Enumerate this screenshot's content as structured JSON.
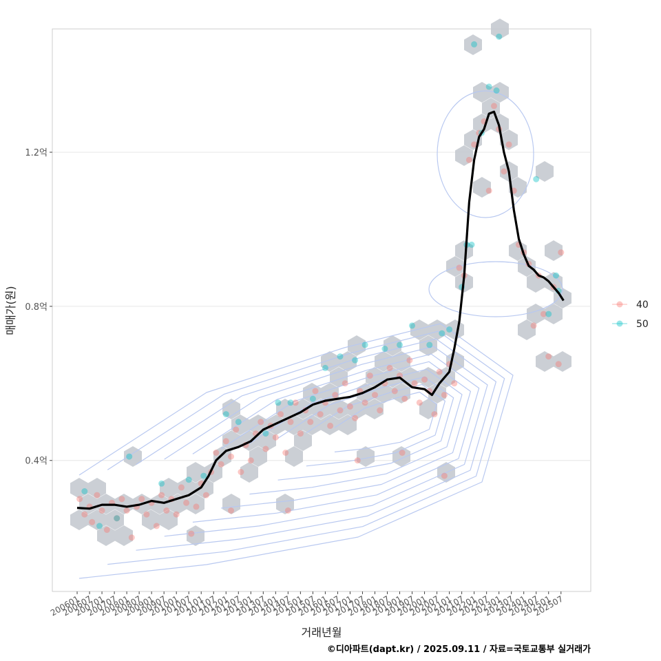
{
  "chart_data": {
    "type": "scatter",
    "xlabel": "거래년월",
    "ylabel": "매매가(원)",
    "x_ticks": [
      "200601",
      "200607",
      "200701",
      "200707",
      "200801",
      "200807",
      "200901",
      "200907",
      "201001",
      "201007",
      "201101",
      "201107",
      "201201",
      "201207",
      "201301",
      "201307",
      "201401",
      "201407",
      "201501",
      "201507",
      "201601",
      "201607",
      "201701",
      "201707",
      "201801",
      "201807",
      "201901",
      "201907",
      "202001",
      "202007",
      "202101",
      "202107",
      "202201",
      "202207",
      "202301",
      "202307",
      "202401",
      "202407",
      "202501",
      "202507"
    ],
    "y_ticks": [
      {
        "value": 0.4,
        "label": "0.4억"
      },
      {
        "value": 0.8,
        "label": "0.8억"
      },
      {
        "value": 1.2,
        "label": "1.2억"
      }
    ],
    "ylim": [
      0.06,
      1.52
    ],
    "xlim": [
      2005.0,
      2026.7
    ],
    "grid": "horizontal major",
    "legend_position": "right",
    "series": [
      {
        "name": "40",
        "color": "#F8766D"
      },
      {
        "name": "50",
        "color": "#00BFC4"
      }
    ],
    "hexbin_color": "#c5cad0",
    "contour_color": "#b8c8f0",
    "trend_line": {
      "color": "#000000",
      "x": [
        2006.0,
        2006.5,
        2007.0,
        2007.5,
        2008.0,
        2008.5,
        2009.0,
        2009.5,
        2010.0,
        2010.5,
        2011.0,
        2011.3,
        2011.6,
        2012.0,
        2012.5,
        2013.0,
        2013.5,
        2014.0,
        2014.5,
        2015.0,
        2015.5,
        2016.0,
        2016.5,
        2017.0,
        2017.5,
        2018.0,
        2018.5,
        2019.0,
        2019.5,
        2020.0,
        2020.3,
        2020.6,
        2021.0,
        2021.2,
        2021.4,
        2021.6,
        2021.8,
        2022.0,
        2022.2,
        2022.4,
        2022.6,
        2022.8,
        2023.0,
        2023.2,
        2023.4,
        2023.6,
        2023.8,
        2024.0,
        2024.2,
        2024.4,
        2024.6,
        2024.8,
        2025.0,
        2025.2,
        2025.4,
        2025.6
      ],
      "y": [
        0.277,
        0.275,
        0.285,
        0.285,
        0.28,
        0.285,
        0.295,
        0.29,
        0.3,
        0.31,
        0.33,
        0.36,
        0.4,
        0.425,
        0.435,
        0.45,
        0.48,
        0.495,
        0.51,
        0.525,
        0.545,
        0.555,
        0.56,
        0.565,
        0.575,
        0.59,
        0.61,
        0.615,
        0.59,
        0.585,
        0.57,
        0.6,
        0.63,
        0.69,
        0.76,
        0.88,
        1.07,
        1.18,
        1.24,
        1.26,
        1.3,
        1.305,
        1.27,
        1.2,
        1.15,
        1.05,
        0.975,
        0.935,
        0.905,
        0.895,
        0.88,
        0.875,
        0.865,
        0.85,
        0.835,
        0.815
      ]
    },
    "points_40": [
      [
        2006.1,
        0.3
      ],
      [
        2006.3,
        0.26
      ],
      [
        2006.5,
        0.28
      ],
      [
        2006.6,
        0.24
      ],
      [
        2006.8,
        0.31
      ],
      [
        2007.0,
        0.27
      ],
      [
        2007.2,
        0.22
      ],
      [
        2007.4,
        0.29
      ],
      [
        2007.6,
        0.25
      ],
      [
        2007.8,
        0.3
      ],
      [
        2008.0,
        0.27
      ],
      [
        2008.2,
        0.2
      ],
      [
        2008.4,
        0.28
      ],
      [
        2008.6,
        0.3
      ],
      [
        2008.8,
        0.26
      ],
      [
        2009.0,
        0.29
      ],
      [
        2009.2,
        0.23
      ],
      [
        2009.4,
        0.31
      ],
      [
        2009.6,
        0.27
      ],
      [
        2009.8,
        0.3
      ],
      [
        2010.0,
        0.26
      ],
      [
        2010.2,
        0.33
      ],
      [
        2010.4,
        0.29
      ],
      [
        2010.6,
        0.21
      ],
      [
        2010.8,
        0.28
      ],
      [
        2011.0,
        0.34
      ],
      [
        2011.2,
        0.31
      ],
      [
        2011.4,
        0.37
      ],
      [
        2011.6,
        0.42
      ],
      [
        2011.8,
        0.39
      ],
      [
        2012.0,
        0.45
      ],
      [
        2012.2,
        0.41
      ],
      [
        2012.4,
        0.48
      ],
      [
        2012.6,
        0.37
      ],
      [
        2012.8,
        0.44
      ],
      [
        2013.0,
        0.4
      ],
      [
        2013.2,
        0.47
      ],
      [
        2013.4,
        0.5
      ],
      [
        2013.6,
        0.43
      ],
      [
        2013.8,
        0.49
      ],
      [
        2014.0,
        0.46
      ],
      [
        2014.2,
        0.52
      ],
      [
        2014.4,
        0.42
      ],
      [
        2014.6,
        0.5
      ],
      [
        2014.8,
        0.55
      ],
      [
        2015.0,
        0.47
      ],
      [
        2015.2,
        0.53
      ],
      [
        2015.4,
        0.5
      ],
      [
        2015.6,
        0.58
      ],
      [
        2015.8,
        0.52
      ],
      [
        2016.0,
        0.55
      ],
      [
        2016.2,
        0.49
      ],
      [
        2016.4,
        0.57
      ],
      [
        2016.6,
        0.53
      ],
      [
        2016.8,
        0.6
      ],
      [
        2017.0,
        0.54
      ],
      [
        2017.2,
        0.51
      ],
      [
        2017.4,
        0.58
      ],
      [
        2017.6,
        0.55
      ],
      [
        2017.8,
        0.62
      ],
      [
        2018.0,
        0.57
      ],
      [
        2018.2,
        0.53
      ],
      [
        2018.4,
        0.6
      ],
      [
        2018.6,
        0.64
      ],
      [
        2018.8,
        0.58
      ],
      [
        2019.0,
        0.62
      ],
      [
        2019.2,
        0.56
      ],
      [
        2019.4,
        0.66
      ],
      [
        2019.6,
        0.6
      ],
      [
        2019.8,
        0.55
      ],
      [
        2020.0,
        0.61
      ],
      [
        2020.2,
        0.58
      ],
      [
        2020.4,
        0.52
      ],
      [
        2020.6,
        0.63
      ],
      [
        2020.8,
        0.57
      ],
      [
        2021.0,
        0.65
      ],
      [
        2021.2,
        0.6
      ],
      [
        2021.4,
        0.9
      ],
      [
        2021.6,
        0.88
      ],
      [
        2021.8,
        1.18
      ],
      [
        2022.0,
        1.22
      ],
      [
        2022.2,
        1.25
      ],
      [
        2022.4,
        1.28
      ],
      [
        2022.6,
        1.1
      ],
      [
        2022.8,
        1.32
      ],
      [
        2023.0,
        1.26
      ],
      [
        2023.2,
        1.15
      ],
      [
        2023.4,
        1.22
      ],
      [
        2023.6,
        1.1
      ],
      [
        2023.8,
        0.96
      ],
      [
        2024.0,
        0.94
      ],
      [
        2024.2,
        0.91
      ],
      [
        2024.4,
        0.75
      ],
      [
        2024.6,
        0.88
      ],
      [
        2024.8,
        0.78
      ],
      [
        2025.0,
        0.67
      ],
      [
        2025.2,
        0.85
      ],
      [
        2025.4,
        0.65
      ],
      [
        2025.5,
        0.94
      ],
      [
        2012.2,
        0.27
      ],
      [
        2014.5,
        0.27
      ],
      [
        2017.3,
        0.4
      ],
      [
        2019.1,
        0.42
      ],
      [
        2020.8,
        0.36
      ]
    ],
    "points_50": [
      [
        2006.3,
        0.32
      ],
      [
        2006.9,
        0.23
      ],
      [
        2007.6,
        0.25
      ],
      [
        2008.1,
        0.41
      ],
      [
        2009.4,
        0.34
      ],
      [
        2010.5,
        0.35
      ],
      [
        2011.1,
        0.36
      ],
      [
        2012.0,
        0.52
      ],
      [
        2012.5,
        0.5
      ],
      [
        2013.6,
        0.47
      ],
      [
        2014.1,
        0.55
      ],
      [
        2014.6,
        0.55
      ],
      [
        2015.5,
        0.56
      ],
      [
        2016.0,
        0.64
      ],
      [
        2016.6,
        0.67
      ],
      [
        2017.2,
        0.66
      ],
      [
        2017.6,
        0.7
      ],
      [
        2018.4,
        0.69
      ],
      [
        2019.0,
        0.7
      ],
      [
        2019.5,
        0.75
      ],
      [
        2020.2,
        0.7
      ],
      [
        2020.7,
        0.73
      ],
      [
        2021.0,
        0.74
      ],
      [
        2021.5,
        0.85
      ],
      [
        2021.7,
        0.96
      ],
      [
        2021.9,
        0.96
      ],
      [
        2022.0,
        1.48
      ],
      [
        2022.3,
        1.25
      ],
      [
        2022.6,
        1.37
      ],
      [
        2022.9,
        1.36
      ],
      [
        2023.0,
        1.5
      ],
      [
        2024.5,
        1.13
      ],
      [
        2025.3,
        0.88
      ],
      [
        2025.4,
        0.84
      ],
      [
        2025.0,
        0.78
      ]
    ]
  },
  "caption": "©디아파트(dapt.kr) / 2025.09.11 / 자료=국토교통부 실거래가"
}
